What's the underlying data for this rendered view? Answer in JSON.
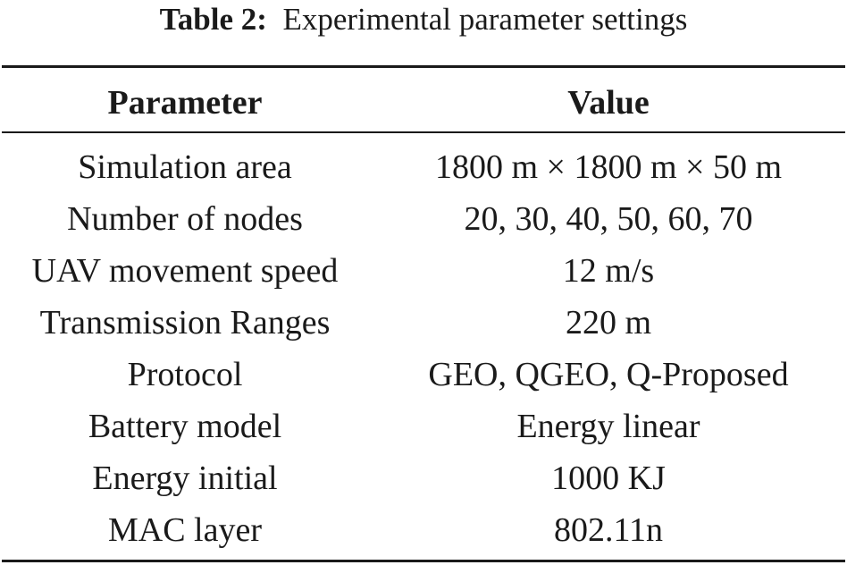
{
  "caption": {
    "label": "Table 2:",
    "text": "Experimental parameter settings"
  },
  "table": {
    "headers": [
      "Parameter",
      "Value"
    ],
    "rows": [
      [
        "Simulation area",
        "1800 m × 1800 m × 50 m"
      ],
      [
        "Number of nodes",
        "20, 30, 40, 50, 60, 70"
      ],
      [
        "UAV movement speed",
        "12 m/s"
      ],
      [
        "Transmission Ranges",
        "220 m"
      ],
      [
        "Protocol",
        "GEO, QGEO, Q-Proposed"
      ],
      [
        "Battery model",
        "Energy linear"
      ],
      [
        "Energy initial",
        "1000 KJ"
      ],
      [
        "MAC layer",
        "802.11n"
      ]
    ]
  }
}
